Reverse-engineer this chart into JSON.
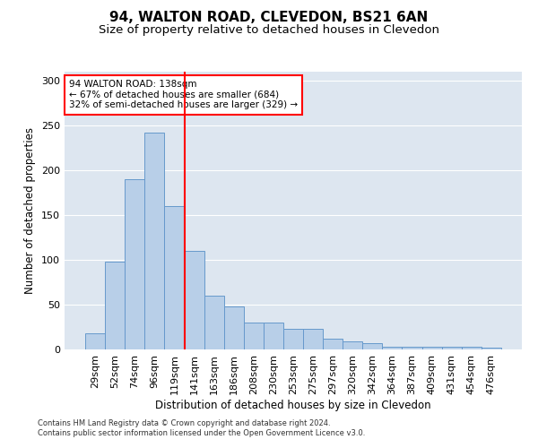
{
  "title1": "94, WALTON ROAD, CLEVEDON, BS21 6AN",
  "title2": "Size of property relative to detached houses in Clevedon",
  "xlabel": "Distribution of detached houses by size in Clevedon",
  "ylabel": "Number of detached properties",
  "categories": [
    "29sqm",
    "52sqm",
    "74sqm",
    "96sqm",
    "119sqm",
    "141sqm",
    "163sqm",
    "186sqm",
    "208sqm",
    "230sqm",
    "253sqm",
    "275sqm",
    "297sqm",
    "320sqm",
    "342sqm",
    "364sqm",
    "387sqm",
    "409sqm",
    "431sqm",
    "454sqm",
    "476sqm"
  ],
  "values": [
    18,
    98,
    190,
    242,
    160,
    110,
    60,
    48,
    30,
    30,
    23,
    23,
    12,
    9,
    7,
    3,
    3,
    3,
    3,
    3,
    2
  ],
  "bar_color": "#b8cfe8",
  "bar_edge_color": "#6699cc",
  "vline_x": 4.5,
  "vline_color": "red",
  "annotation_text": "94 WALTON ROAD: 138sqm\n← 67% of detached houses are smaller (684)\n32% of semi-detached houses are larger (329) →",
  "annotation_box_color": "white",
  "annotation_box_edge": "red",
  "footer": "Contains HM Land Registry data © Crown copyright and database right 2024.\nContains public sector information licensed under the Open Government Licence v3.0.",
  "ylim": [
    0,
    310
  ],
  "yticks": [
    0,
    50,
    100,
    150,
    200,
    250,
    300
  ],
  "background_color": "#dde6f0",
  "title1_fontsize": 11,
  "title2_fontsize": 9.5,
  "xlabel_fontsize": 8.5,
  "ylabel_fontsize": 8.5,
  "tick_fontsize": 8,
  "annot_fontsize": 7.5,
  "footer_fontsize": 6
}
